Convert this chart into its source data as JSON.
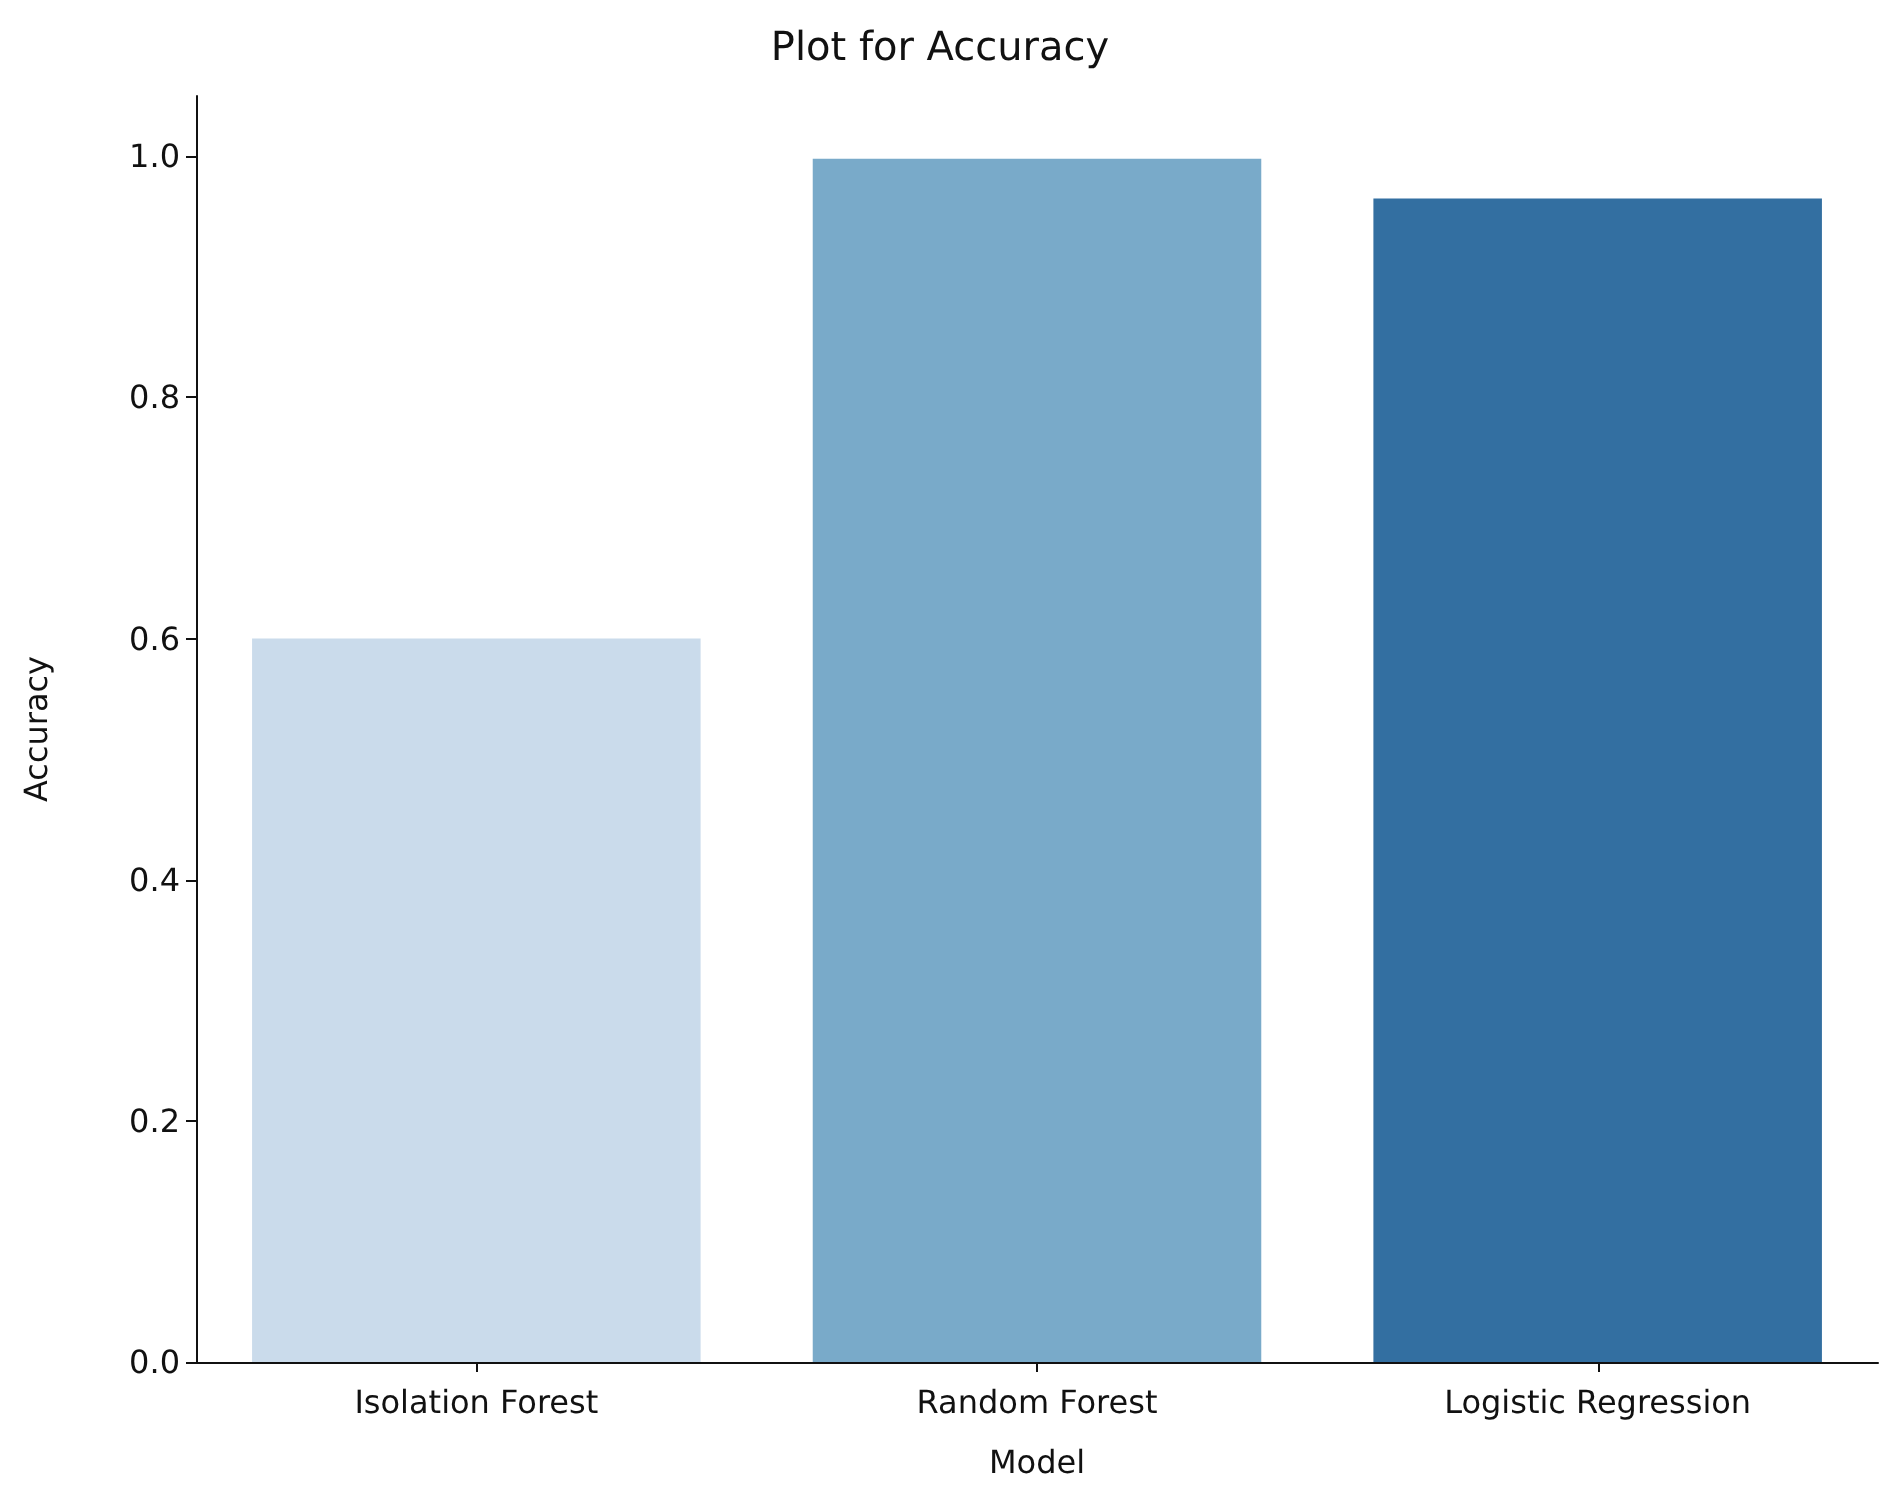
{
  "chart_data": {
    "type": "bar",
    "title": "Plot for Accuracy",
    "xlabel": "Model",
    "ylabel": "Accuracy",
    "categories": [
      "Isolation Forest",
      "Random Forest",
      "Logistic Regression"
    ],
    "values": [
      0.6,
      0.998,
      0.965
    ],
    "colors": [
      "#cadbeb",
      "#79aac9",
      "#336fa1"
    ],
    "ylim": [
      0,
      1.05
    ],
    "yticks": [
      {
        "value": 0,
        "label": "0.0"
      },
      0.2,
      0.4,
      0.6,
      0.8,
      {
        "value": 1,
        "label": "1.0"
      }
    ],
    "grid": false
  }
}
